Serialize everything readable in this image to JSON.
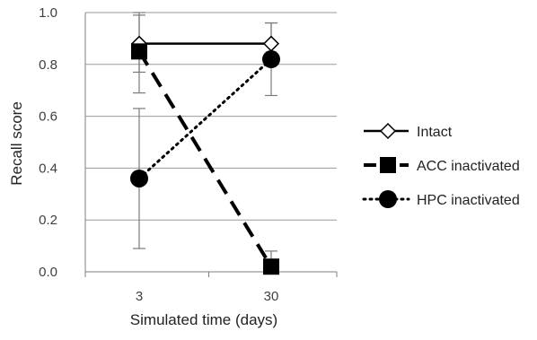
{
  "chart_data": {
    "type": "line",
    "xlabel": "Simulated time (days)",
    "ylabel": "Recall score",
    "categories": [
      "3",
      "30"
    ],
    "ylim": [
      0,
      1
    ],
    "yticks": [
      "0.0",
      "0.2",
      "0.4",
      "0.6",
      "0.8",
      "1.0"
    ],
    "grid": "horizontal",
    "legend": "right",
    "series": [
      {
        "name": "Intact",
        "values": [
          0.88,
          0.88
        ],
        "err": [
          0.11,
          0.08
        ],
        "line": "solid",
        "marker": "diamond-open",
        "color": "#000000"
      },
      {
        "name": "ACC inactivated",
        "values": [
          0.85,
          0.02
        ],
        "err": [
          0.16,
          0.06
        ],
        "line": "dashed",
        "marker": "square",
        "color": "#000000"
      },
      {
        "name": "HPC inactivated",
        "values": [
          0.36,
          0.82
        ],
        "err": [
          0.27,
          0.14
        ],
        "line": "dotted",
        "marker": "circle",
        "color": "#000000"
      }
    ]
  }
}
